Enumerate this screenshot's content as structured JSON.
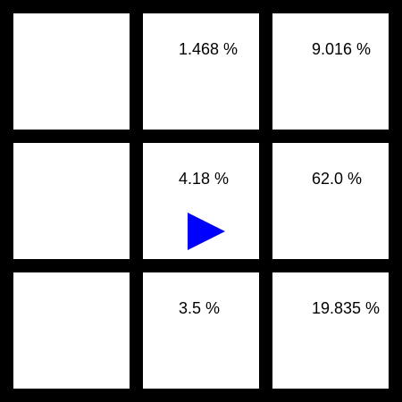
{
  "grid": {
    "rows": 3,
    "cols": 3,
    "cells": [
      {
        "row": 0,
        "col": 0,
        "value": ""
      },
      {
        "row": 0,
        "col": 1,
        "value": "1.468 %"
      },
      {
        "row": 0,
        "col": 2,
        "value": "9.016 %"
      },
      {
        "row": 1,
        "col": 0,
        "value": ""
      },
      {
        "row": 1,
        "col": 1,
        "value": "4.18 %"
      },
      {
        "row": 1,
        "col": 2,
        "value": "62.0 %"
      },
      {
        "row": 2,
        "col": 0,
        "value": ""
      },
      {
        "row": 2,
        "col": 1,
        "value": "3.5 %"
      },
      {
        "row": 2,
        "col": 2,
        "value": "19.835 %"
      }
    ]
  },
  "agent": {
    "row": 1,
    "col": 1,
    "direction": "right",
    "icon": "play-triangle-icon",
    "color": "#0000ff"
  },
  "colors": {
    "background": "#000000",
    "cell": "#ffffff",
    "text": "#000000"
  }
}
